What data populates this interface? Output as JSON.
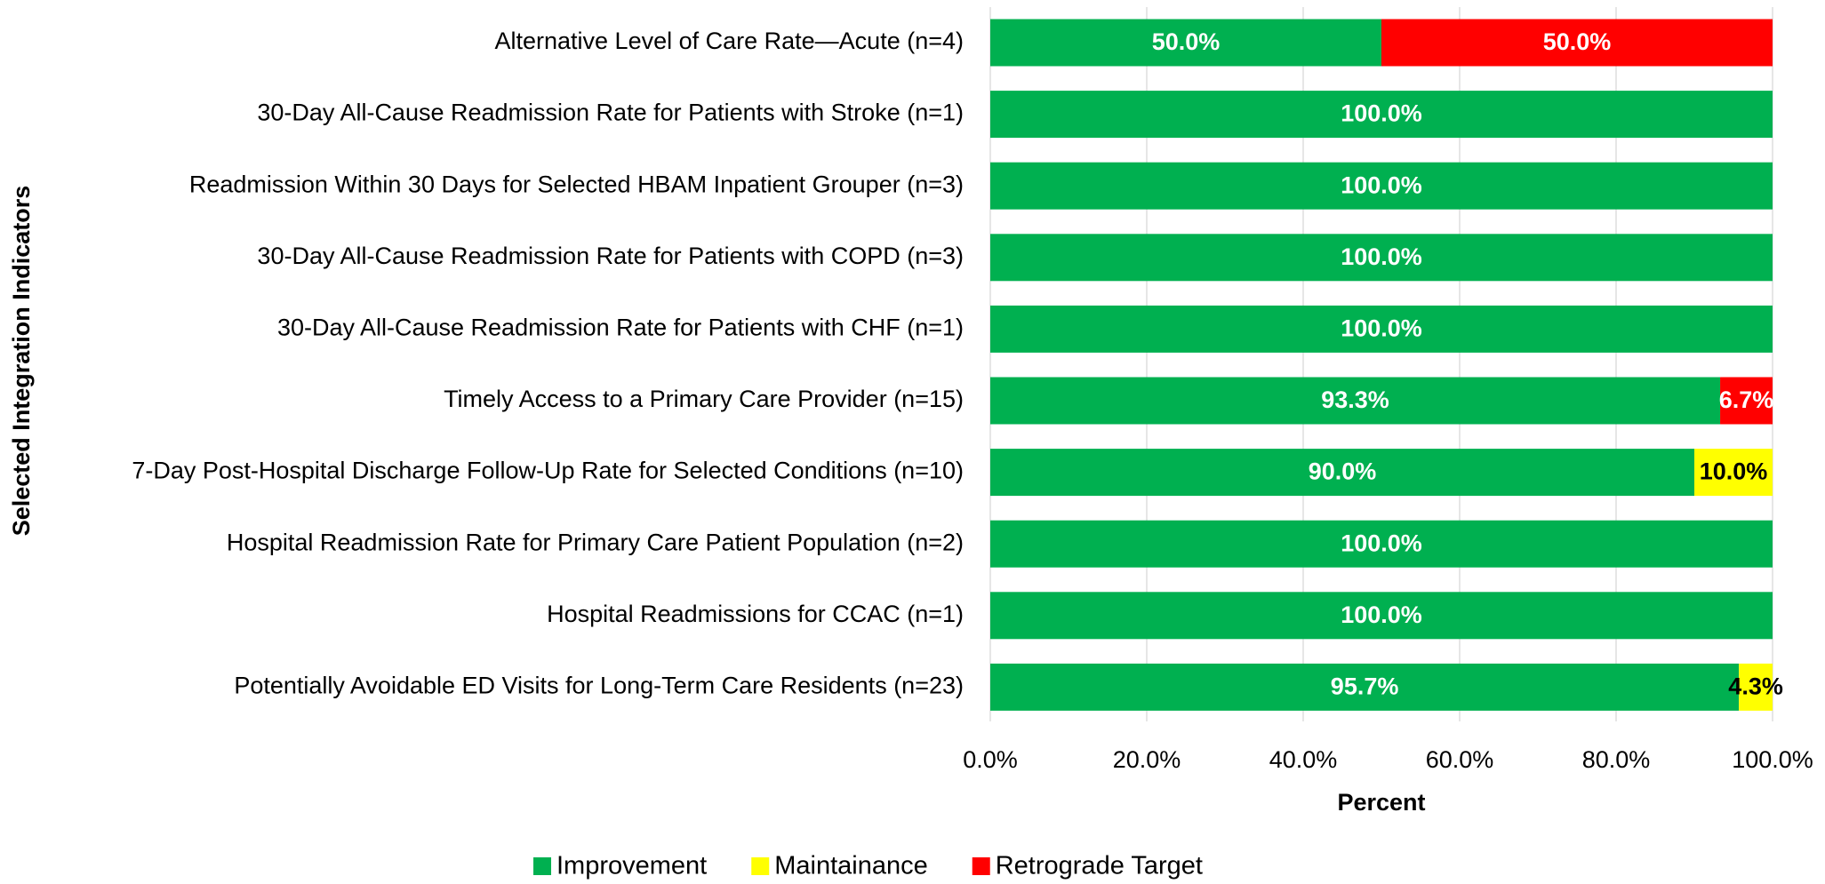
{
  "chart_data": {
    "type": "stacked-barh",
    "ylabel": "Selected Integration Indicators",
    "xlabel": "Percent",
    "categories": [
      "Alternative Level of Care Rate—Acute (n=4)",
      "30-Day All-Cause Readmission Rate for Patients with Stroke (n=1)",
      "Readmission Within 30 Days for Selected HBAM Inpatient Grouper (n=3)",
      "30-Day All-Cause Readmission Rate for Patients with COPD (n=3)",
      "30-Day All-Cause Readmission Rate for Patients with CHF (n=1)",
      "Timely Access to a Primary Care Provider (n=15)",
      "7-Day Post-Hospital Discharge Follow-Up Rate for Selected Conditions (n=10)",
      "Hospital Readmission Rate for Primary Care Patient Population (n=2)",
      "Hospital Readmissions for CCAC (n=1)",
      "Potentially Avoidable ED Visits for Long-Term Care Residents (n=23)"
    ],
    "series": [
      {
        "name": "Improvement",
        "color": "#00b050",
        "label_color": "#ffffff",
        "values": [
          50,
          100,
          100,
          100,
          100,
          93.3,
          90,
          100,
          100,
          95.7
        ],
        "value_labels": [
          "50.0%",
          "100.0%",
          "100.0%",
          "100.0%",
          "100.0%",
          "93.3%",
          "90.0%",
          "100.0%",
          "100.0%",
          "95.7%"
        ]
      },
      {
        "name": "Maintainance",
        "color": "#ffff00",
        "label_color": "#000000",
        "values": [
          0,
          0,
          0,
          0,
          0,
          0,
          10,
          0,
          0,
          4.3
        ],
        "value_labels": [
          null,
          null,
          null,
          null,
          null,
          null,
          "10.0%",
          null,
          null,
          "4.3%"
        ]
      },
      {
        "name": "Retrograde Target",
        "color": "#ff0000",
        "label_color": "#ffffff",
        "values": [
          50,
          0,
          0,
          0,
          0,
          6.7,
          0,
          0,
          0,
          0
        ],
        "value_labels": [
          "50.0%",
          null,
          null,
          null,
          null,
          "6.7%",
          null,
          null,
          null,
          null
        ]
      }
    ],
    "xlim": [
      0,
      100
    ],
    "xticks": [
      {
        "value": 0,
        "label": "0.0%"
      },
      {
        "value": 20,
        "label": "20.0%"
      },
      {
        "value": 40,
        "label": "40.0%"
      },
      {
        "value": 60,
        "label": "60.0%"
      },
      {
        "value": 80,
        "label": "80.0%"
      },
      {
        "value": 100,
        "label": "100.0%"
      }
    ],
    "grid": true,
    "legend": "bottom"
  }
}
